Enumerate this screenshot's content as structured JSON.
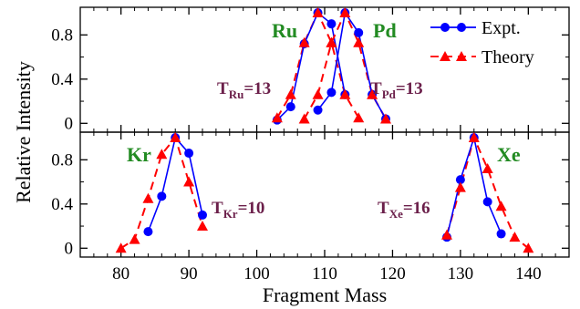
{
  "chart_data": {
    "type": "line",
    "xlabel": "Fragment Mass",
    "ylabel": "Relative Intensity",
    "xlim": [
      74,
      146
    ],
    "x_ticks": [
      "80",
      "90",
      "100",
      "110",
      "120",
      "130",
      "140"
    ],
    "y_ticks": [
      "0",
      "0.4",
      "0.8"
    ],
    "colors": {
      "expt": "#0000ff",
      "theory": "#ff0000",
      "element": "#228b22",
      "temperature": "#6b1f4a"
    },
    "legend": {
      "position": "top-right",
      "expt": "Expt.",
      "theory": "Theory"
    },
    "panels": [
      {
        "name": "top",
        "ylim": [
          -0.08,
          1.05
        ],
        "groups": [
          {
            "element": "Ru",
            "temp_text": "T",
            "temp_sub": "Ru",
            "temp_value": "=13",
            "expt": {
              "x": [
                103,
                105,
                107,
                109,
                111,
                113
              ],
              "y": [
                0.03,
                0.15,
                0.72,
                1.0,
                0.9,
                0.26
              ]
            },
            "theory": {
              "x": [
                103,
                105,
                107,
                109,
                111,
                113,
                115
              ],
              "y": [
                0.05,
                0.26,
                0.73,
                1.0,
                0.73,
                0.26,
                0.05
              ]
            }
          },
          {
            "element": "Pd",
            "temp_text": "T",
            "temp_sub": "Pd",
            "temp_value": "=13",
            "expt": {
              "x": [
                109,
                111,
                113,
                115,
                117,
                119
              ],
              "y": [
                0.12,
                0.28,
                1.0,
                0.82,
                0.26,
                0.04
              ]
            },
            "theory": {
              "x": [
                107,
                109,
                111,
                113,
                115,
                117,
                119
              ],
              "y": [
                0.04,
                0.26,
                0.73,
                1.0,
                0.73,
                0.26,
                0.04
              ]
            }
          }
        ]
      },
      {
        "name": "bottom",
        "ylim": [
          -0.08,
          1.05
        ],
        "groups": [
          {
            "element": "Kr",
            "temp_text": "T",
            "temp_sub": "Kr",
            "temp_value": "=10",
            "expt": {
              "x": [
                84,
                86,
                88,
                90,
                92
              ],
              "y": [
                0.15,
                0.47,
                1.0,
                0.86,
                0.3
              ]
            },
            "theory": {
              "x": [
                80,
                82,
                84,
                86,
                88,
                90,
                92
              ],
              "y": [
                0.0,
                0.08,
                0.45,
                0.85,
                1.0,
                0.6,
                0.2
              ]
            }
          },
          {
            "element": "Xe",
            "temp_text": "T",
            "temp_sub": "Xe",
            "temp_value": "=16",
            "expt": {
              "x": [
                128,
                130,
                132,
                134,
                136
              ],
              "y": [
                0.1,
                0.62,
                1.0,
                0.42,
                0.13
              ]
            },
            "theory": {
              "x": [
                128,
                130,
                132,
                134,
                136,
                138,
                140
              ],
              "y": [
                0.12,
                0.55,
                1.0,
                0.72,
                0.38,
                0.1,
                0.0
              ]
            }
          }
        ]
      }
    ]
  }
}
